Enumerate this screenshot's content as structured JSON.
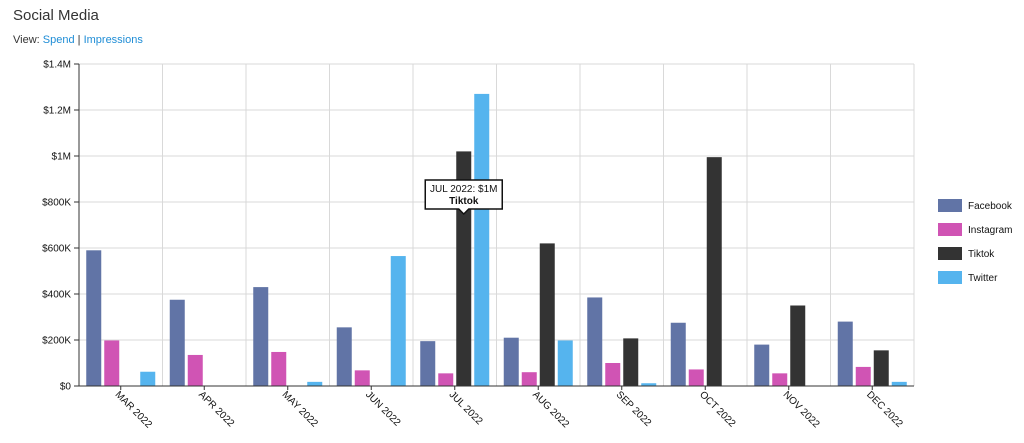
{
  "page": {
    "title": "Social Media",
    "view_prefix": "View:",
    "view_links": [
      "Spend",
      "Impressions"
    ],
    "view_separator": "|"
  },
  "colors": {
    "accent_link": "#1f8dd6"
  },
  "chart_data": {
    "type": "bar",
    "title": "Social Media",
    "xlabel": "",
    "ylabel": "",
    "categories": [
      "MAR 2022",
      "APR 2022",
      "MAY 2022",
      "JUN 2022",
      "JUL 2022",
      "AUG 2022",
      "SEP 2022",
      "OCT 2022",
      "NOV 2022",
      "DEC 2022"
    ],
    "series": [
      {
        "name": "Facebook",
        "color": "#6174a6",
        "values": [
          590000,
          375000,
          430000,
          255000,
          195000,
          210000,
          385000,
          275000,
          180000,
          280000
        ]
      },
      {
        "name": "Instagram",
        "color": "#d054b4",
        "values": [
          198000,
          135000,
          148000,
          68000,
          55000,
          60000,
          100000,
          72000,
          55000,
          83000
        ]
      },
      {
        "name": "Tiktok",
        "color": "#333333",
        "values": [
          0,
          0,
          0,
          0,
          1020000,
          620000,
          207000,
          995000,
          350000,
          155000
        ]
      },
      {
        "name": "Twitter",
        "color": "#55b4ee",
        "values": [
          62000,
          0,
          18000,
          565000,
          1270000,
          198000,
          12000,
          0,
          0,
          18000
        ]
      }
    ],
    "ylim": [
      0,
      1400000
    ],
    "yticks": [
      0,
      200000,
      400000,
      600000,
      800000,
      1000000,
      1200000,
      1400000
    ],
    "ytick_labels": [
      "$0",
      "$200K",
      "$400K",
      "$600K",
      "$800K",
      "$1M",
      "$1.2M",
      "$1.4M"
    ],
    "grid": true,
    "legend_position": "right",
    "tooltip": {
      "category": "JUL 2022",
      "series": "Tiktok",
      "line1": "JUL 2022: $1M",
      "line2": "Tiktok"
    }
  }
}
